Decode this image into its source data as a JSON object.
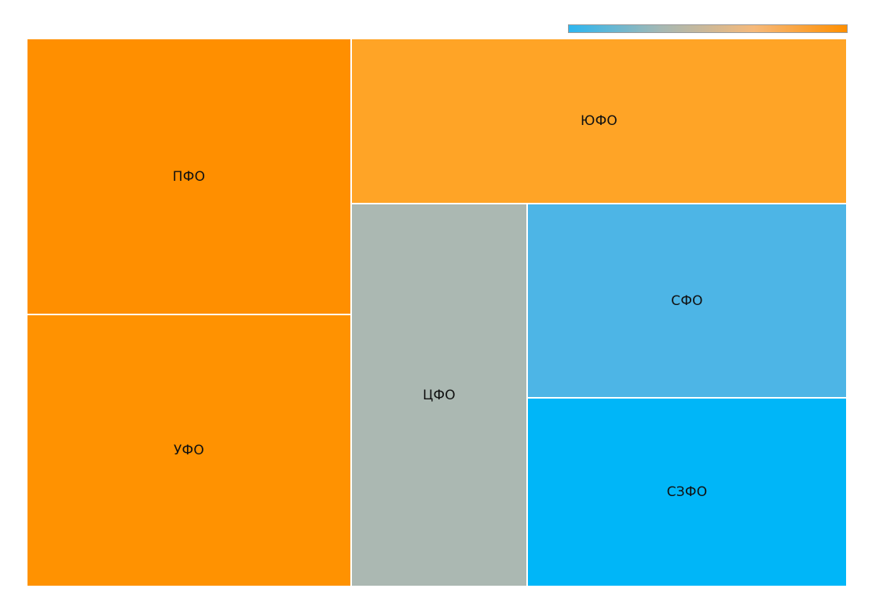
{
  "chart_data": {
    "type": "treemap",
    "title": "",
    "legend": {
      "type": "color-gradient",
      "placement": "top-right",
      "stops": [
        "#2cb6f0",
        "#a6b8b3",
        "#f6b97a",
        "#ff8f00"
      ]
    },
    "items": [
      {
        "name": "ПФО",
        "area_share": 0.2143,
        "color": "#ff8f00"
      },
      {
        "name": "УФО",
        "area_share": 0.2131,
        "color": "#ff9201"
      },
      {
        "name": "ЮФО",
        "area_share": 0.1949,
        "color": "#ffa426"
      },
      {
        "name": "ЦФО",
        "area_share": 0.1676,
        "color": "#abb8b2"
      },
      {
        "name": "СФО",
        "area_share": 0.1101,
        "color": "#4db5e6"
      },
      {
        "name": "СЗФО",
        "area_share": 0.106,
        "color": "#00b6f8"
      }
    ]
  }
}
